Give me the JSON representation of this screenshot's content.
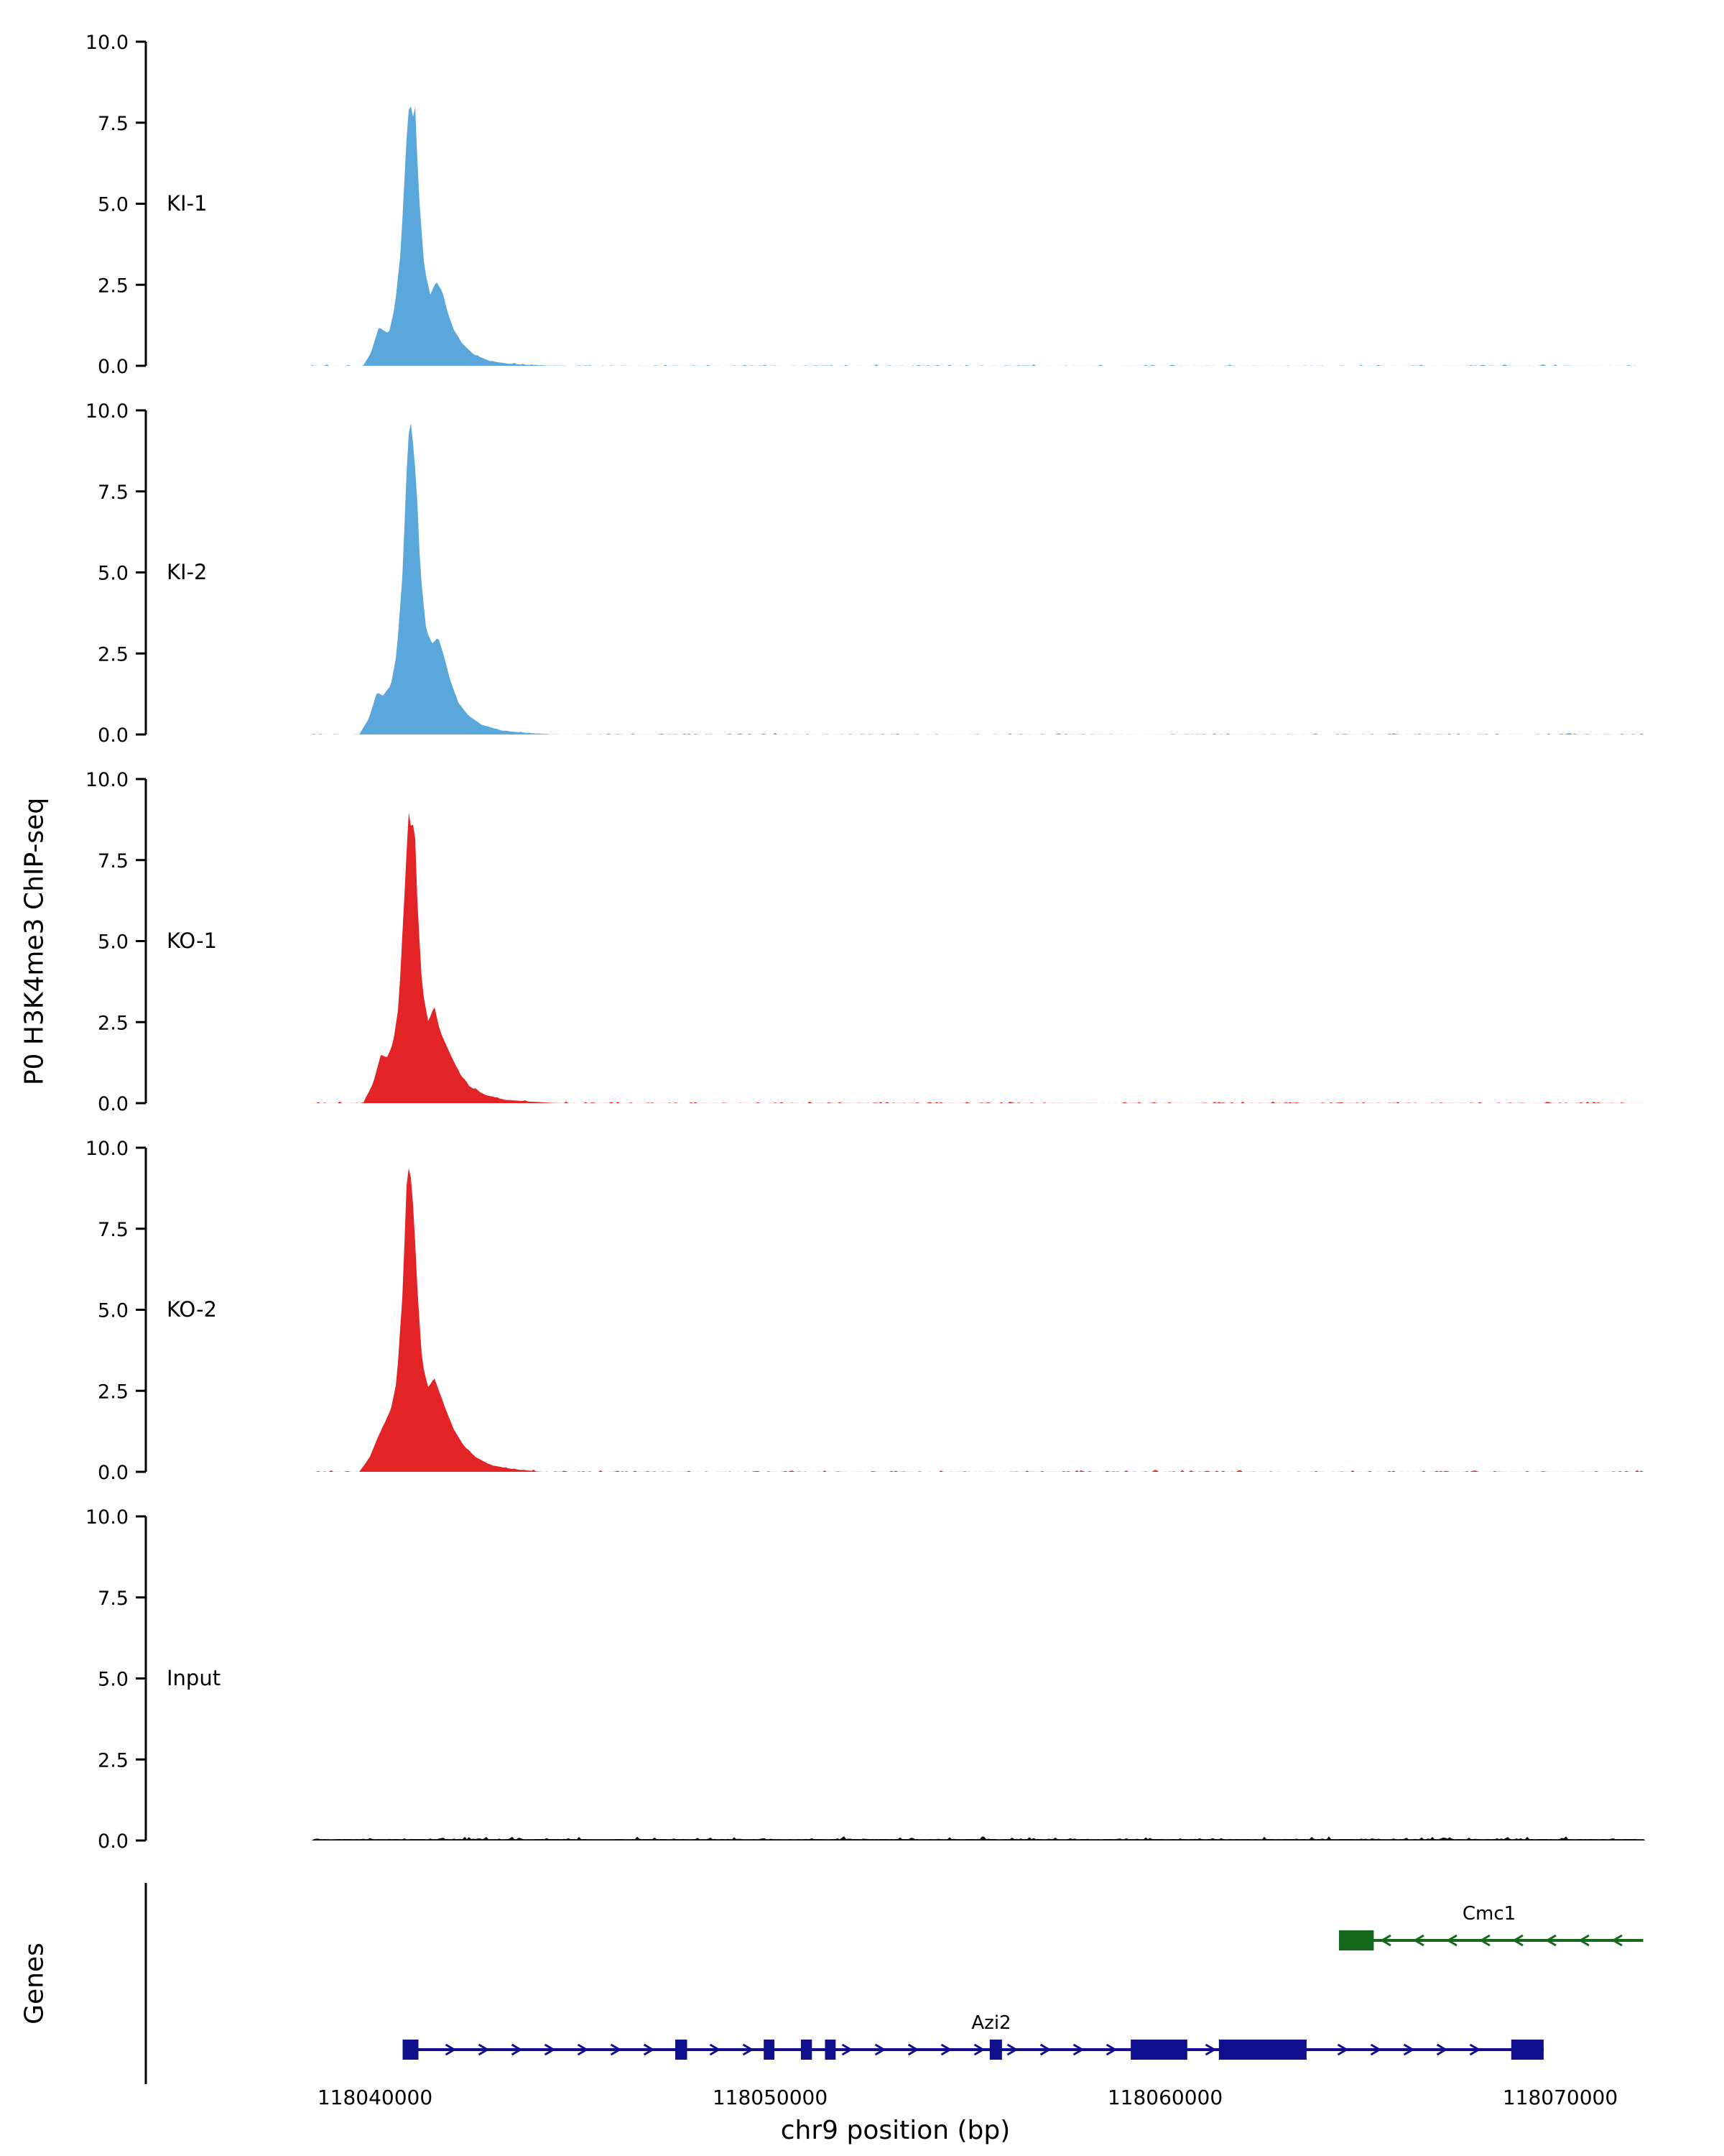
{
  "figure": {
    "y_axis_title": "P0 H3K4me3 ChIP-seq",
    "genes_title": "Genes",
    "x_axis_title": "chr9 position (bp)"
  },
  "chart_data": {
    "type": "area",
    "title": "",
    "xlabel": "chr9 position (bp)",
    "ylabel": "P0 H3K4me3 ChIP-seq",
    "x_domain": [
      118034200,
      118072145
    ],
    "data_extent": [
      118038400,
      118072150
    ],
    "x_ticks": [
      118040000,
      118050000,
      118060000,
      118070000
    ],
    "x_tick_labels": [
      "118040000",
      "118050000",
      "118060000",
      "118070000"
    ],
    "ylim": [
      0,
      10
    ],
    "y_ticks": [
      0,
      2.5,
      5,
      7.5,
      10
    ],
    "y_tick_labels": [
      "0.0",
      "2.5",
      "5.0",
      "7.5",
      "10.0"
    ],
    "grid": false,
    "legend": "none",
    "tracks": [
      {
        "label": "KI-1",
        "color": "#5aa7dc",
        "noise": 0.05,
        "profile": [
          [
            118039700,
            0
          ],
          [
            118039900,
            0.4
          ],
          [
            118040100,
            1.2
          ],
          [
            118040200,
            1.1
          ],
          [
            118040350,
            1.0
          ],
          [
            118040500,
            1.8
          ],
          [
            118040650,
            3.5
          ],
          [
            118040800,
            7.0
          ],
          [
            118040880,
            8.3
          ],
          [
            118040950,
            7.6
          ],
          [
            118041020,
            8.0
          ],
          [
            118041100,
            5.5
          ],
          [
            118041250,
            3.0
          ],
          [
            118041400,
            2.2
          ],
          [
            118041550,
            2.6
          ],
          [
            118041700,
            2.3
          ],
          [
            118041850,
            1.6
          ],
          [
            118042000,
            1.1
          ],
          [
            118042200,
            0.7
          ],
          [
            118042500,
            0.35
          ],
          [
            118042900,
            0.15
          ],
          [
            118043400,
            0.06
          ],
          [
            118044000,
            0.02
          ],
          [
            118044500,
            0
          ]
        ]
      },
      {
        "label": "KI-2",
        "color": "#5aa7dc",
        "noise": 0.05,
        "profile": [
          [
            118039600,
            0
          ],
          [
            118039850,
            0.5
          ],
          [
            118040050,
            1.3
          ],
          [
            118040200,
            1.2
          ],
          [
            118040400,
            1.5
          ],
          [
            118040550,
            2.5
          ],
          [
            118040700,
            5.0
          ],
          [
            118040830,
            9.0
          ],
          [
            118040900,
            9.7
          ],
          [
            118040980,
            8.8
          ],
          [
            118041060,
            7.5
          ],
          [
            118041150,
            5.0
          ],
          [
            118041300,
            3.2
          ],
          [
            118041450,
            2.8
          ],
          [
            118041600,
            3.0
          ],
          [
            118041750,
            2.4
          ],
          [
            118041900,
            1.7
          ],
          [
            118042100,
            1.0
          ],
          [
            118042350,
            0.6
          ],
          [
            118042700,
            0.3
          ],
          [
            118043200,
            0.12
          ],
          [
            118043800,
            0.05
          ],
          [
            118044500,
            0
          ]
        ]
      },
      {
        "label": "KO-1",
        "color": "#e32427",
        "noise": 0.06,
        "profile": [
          [
            118039700,
            0
          ],
          [
            118039950,
            0.6
          ],
          [
            118040150,
            1.5
          ],
          [
            118040300,
            1.4
          ],
          [
            118040450,
            1.8
          ],
          [
            118040600,
            3.0
          ],
          [
            118040750,
            6.5
          ],
          [
            118040850,
            9.0
          ],
          [
            118040930,
            8.4
          ],
          [
            118041000,
            8.8
          ],
          [
            118041080,
            6.0
          ],
          [
            118041200,
            3.5
          ],
          [
            118041350,
            2.5
          ],
          [
            118041500,
            3.0
          ],
          [
            118041650,
            2.2
          ],
          [
            118041800,
            1.8
          ],
          [
            118041950,
            1.4
          ],
          [
            118042150,
            0.9
          ],
          [
            118042400,
            0.5
          ],
          [
            118042800,
            0.25
          ],
          [
            118043300,
            0.1
          ],
          [
            118044000,
            0.04
          ],
          [
            118044600,
            0
          ]
        ]
      },
      {
        "label": "KO-2",
        "color": "#e32427",
        "noise": 0.06,
        "profile": [
          [
            118039600,
            0
          ],
          [
            118039850,
            0.4
          ],
          [
            118040050,
            1.0
          ],
          [
            118040250,
            1.5
          ],
          [
            118040400,
            1.9
          ],
          [
            118040550,
            2.8
          ],
          [
            118040700,
            5.5
          ],
          [
            118040820,
            9.5
          ],
          [
            118040900,
            9.2
          ],
          [
            118040980,
            8.0
          ],
          [
            118041080,
            5.5
          ],
          [
            118041200,
            3.3
          ],
          [
            118041350,
            2.6
          ],
          [
            118041500,
            2.9
          ],
          [
            118041650,
            2.4
          ],
          [
            118041800,
            1.9
          ],
          [
            118042000,
            1.3
          ],
          [
            118042250,
            0.8
          ],
          [
            118042550,
            0.45
          ],
          [
            118042950,
            0.2
          ],
          [
            118043500,
            0.08
          ],
          [
            118044200,
            0
          ]
        ]
      },
      {
        "label": "Input",
        "color": "#111111",
        "noise": 0.1,
        "profile": [
          [
            118038400,
            0.04
          ],
          [
            118072150,
            0.04
          ]
        ]
      }
    ],
    "genes": [
      {
        "name": "Cmc1",
        "color": "#15691c",
        "strand": "-",
        "start": 118064400,
        "end": 118072100,
        "label_x": 118068200,
        "exons": [
          [
            118064400,
            118065280
          ]
        ]
      },
      {
        "name": "Azi2",
        "color": "#10108e",
        "strand": "+",
        "start": 118040700,
        "end": 118069580,
        "label_x": 118055600,
        "exons": [
          [
            118040700,
            118041100
          ],
          [
            118047600,
            118047900
          ],
          [
            118049840,
            118050110
          ],
          [
            118050780,
            118051060
          ],
          [
            118051390,
            118051660
          ],
          [
            118055560,
            118055870
          ],
          [
            118059130,
            118060560
          ],
          [
            118061360,
            118063580
          ],
          [
            118068760,
            118069580
          ]
        ]
      }
    ]
  }
}
